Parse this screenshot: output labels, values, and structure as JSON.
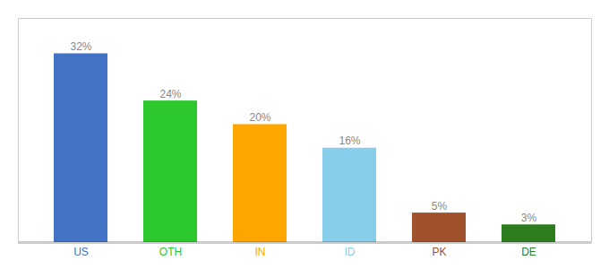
{
  "chart_data": {
    "type": "bar",
    "categories": [
      "US",
      "OTH",
      "IN",
      "ID",
      "PK",
      "DE"
    ],
    "values": [
      32,
      24,
      20,
      16,
      5,
      3
    ],
    "value_labels": [
      "32%",
      "24%",
      "20%",
      "16%",
      "5%",
      "3%"
    ],
    "colors": [
      "#4472c4",
      "#2dc82d",
      "#ffa500",
      "#87ceeb",
      "#a0522d",
      "#2d7d1e"
    ],
    "ylim": [
      0,
      38
    ],
    "data_labels": true,
    "tick_labels": "x",
    "grid": false
  }
}
